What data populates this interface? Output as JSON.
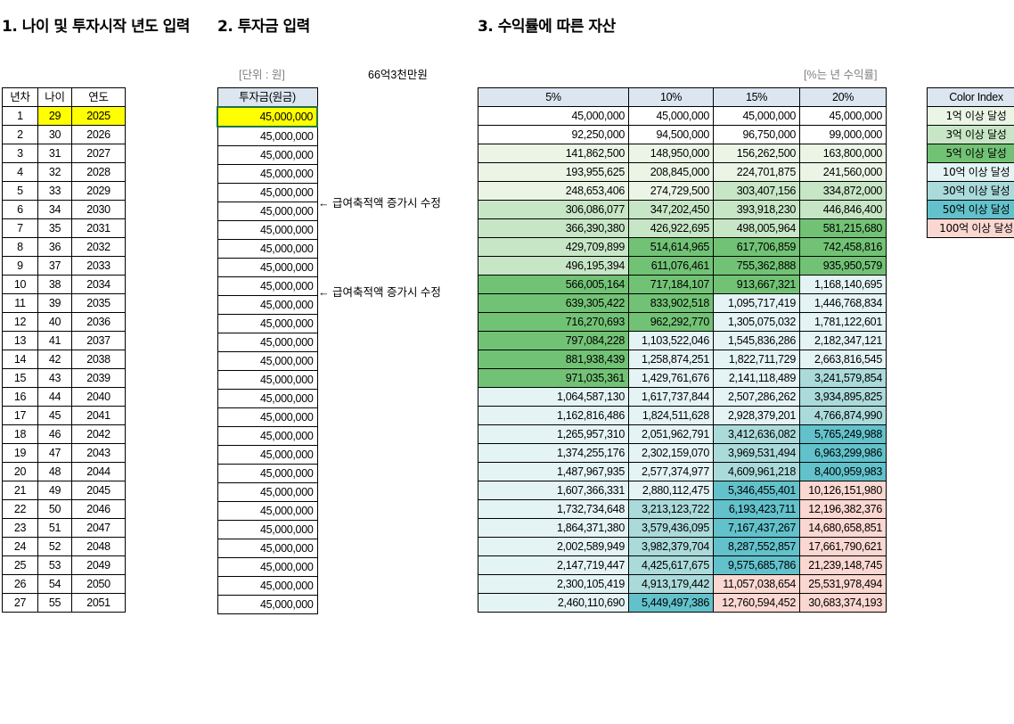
{
  "section_titles": {
    "s1": "1. 나이 및 투자시작 년도 입력",
    "s2": "2. 투자금 입력",
    "s3": "3. 수익률에 따른 자산"
  },
  "unit_label": "[단위 : 원]",
  "total_note": "66억3천만원",
  "rate_note": "[%는 년 수익률]",
  "left_headers": [
    "년차",
    "나이",
    "연도"
  ],
  "invest_header": "투자금(원금)",
  "arrow_notes": [
    {
      "row": 6,
      "text": "← 급여축적액 증가시 수정"
    },
    {
      "row": 11,
      "text": "← 급여축적액 증가시 수정"
    }
  ],
  "rate_headers": [
    "5%",
    "10%",
    "15%",
    "20%"
  ],
  "colors": {
    "header_fill": "#dce6f1",
    "input_highlight": "#ffff00",
    "tier_1": "#ebf5e6",
    "tier_3": "#c7e6c6",
    "tier_5": "#72c275",
    "tier_10": "#e4f3f4",
    "tier_30": "#abdadb",
    "tier_50": "#62c1cb",
    "tier_100": "#fbd7d1"
  },
  "legend": {
    "title": "Color Index",
    "items": [
      {
        "label": "1억 이상 달성",
        "color": "#ebf5e6"
      },
      {
        "label": "3억 이상 달성",
        "color": "#c7e6c6"
      },
      {
        "label": "5억 이상 달성",
        "color": "#72c275"
      },
      {
        "label": "10억 이상 달성",
        "color": "#e4f3f4"
      },
      {
        "label": "30억 이상 달성",
        "color": "#abdadb"
      },
      {
        "label": "50억 이상 달성",
        "color": "#62c1cb"
      },
      {
        "label": "100억 이상 달성",
        "color": "#fbd7d1"
      }
    ]
  },
  "rows": [
    {
      "year": "1",
      "age": "29",
      "cal": "2025",
      "invest": "45,000,000",
      "v": [
        "45,000,000",
        "45,000,000",
        "45,000,000",
        "45,000,000"
      ]
    },
    {
      "year": "2",
      "age": "30",
      "cal": "2026",
      "invest": "45,000,000",
      "v": [
        "92,250,000",
        "94,500,000",
        "96,750,000",
        "99,000,000"
      ]
    },
    {
      "year": "3",
      "age": "31",
      "cal": "2027",
      "invest": "45,000,000",
      "v": [
        "141,862,500",
        "148,950,000",
        "156,262,500",
        "163,800,000"
      ]
    },
    {
      "year": "4",
      "age": "32",
      "cal": "2028",
      "invest": "45,000,000",
      "v": [
        "193,955,625",
        "208,845,000",
        "224,701,875",
        "241,560,000"
      ]
    },
    {
      "year": "5",
      "age": "33",
      "cal": "2029",
      "invest": "45,000,000",
      "v": [
        "248,653,406",
        "274,729,500",
        "303,407,156",
        "334,872,000"
      ]
    },
    {
      "year": "6",
      "age": "34",
      "cal": "2030",
      "invest": "45,000,000",
      "v": [
        "306,086,077",
        "347,202,450",
        "393,918,230",
        "446,846,400"
      ]
    },
    {
      "year": "7",
      "age": "35",
      "cal": "2031",
      "invest": "45,000,000",
      "v": [
        "366,390,380",
        "426,922,695",
        "498,005,964",
        "581,215,680"
      ]
    },
    {
      "year": "8",
      "age": "36",
      "cal": "2032",
      "invest": "45,000,000",
      "v": [
        "429,709,899",
        "514,614,965",
        "617,706,859",
        "742,458,816"
      ]
    },
    {
      "year": "9",
      "age": "37",
      "cal": "2033",
      "invest": "45,000,000",
      "v": [
        "496,195,394",
        "611,076,461",
        "755,362,888",
        "935,950,579"
      ]
    },
    {
      "year": "10",
      "age": "38",
      "cal": "2034",
      "invest": "45,000,000",
      "v": [
        "566,005,164",
        "717,184,107",
        "913,667,321",
        "1,168,140,695"
      ]
    },
    {
      "year": "11",
      "age": "39",
      "cal": "2035",
      "invest": "45,000,000",
      "v": [
        "639,305,422",
        "833,902,518",
        "1,095,717,419",
        "1,446,768,834"
      ]
    },
    {
      "year": "12",
      "age": "40",
      "cal": "2036",
      "invest": "45,000,000",
      "v": [
        "716,270,693",
        "962,292,770",
        "1,305,075,032",
        "1,781,122,601"
      ]
    },
    {
      "year": "13",
      "age": "41",
      "cal": "2037",
      "invest": "45,000,000",
      "v": [
        "797,084,228",
        "1,103,522,046",
        "1,545,836,286",
        "2,182,347,121"
      ]
    },
    {
      "year": "14",
      "age": "42",
      "cal": "2038",
      "invest": "45,000,000",
      "v": [
        "881,938,439",
        "1,258,874,251",
        "1,822,711,729",
        "2,663,816,545"
      ]
    },
    {
      "year": "15",
      "age": "43",
      "cal": "2039",
      "invest": "45,000,000",
      "v": [
        "971,035,361",
        "1,429,761,676",
        "2,141,118,489",
        "3,241,579,854"
      ]
    },
    {
      "year": "16",
      "age": "44",
      "cal": "2040",
      "invest": "45,000,000",
      "v": [
        "1,064,587,130",
        "1,617,737,844",
        "2,507,286,262",
        "3,934,895,825"
      ]
    },
    {
      "year": "17",
      "age": "45",
      "cal": "2041",
      "invest": "45,000,000",
      "v": [
        "1,162,816,486",
        "1,824,511,628",
        "2,928,379,201",
        "4,766,874,990"
      ]
    },
    {
      "year": "18",
      "age": "46",
      "cal": "2042",
      "invest": "45,000,000",
      "v": [
        "1,265,957,310",
        "2,051,962,791",
        "3,412,636,082",
        "5,765,249,988"
      ]
    },
    {
      "year": "19",
      "age": "47",
      "cal": "2043",
      "invest": "45,000,000",
      "v": [
        "1,374,255,176",
        "2,302,159,070",
        "3,969,531,494",
        "6,963,299,986"
      ]
    },
    {
      "year": "20",
      "age": "48",
      "cal": "2044",
      "invest": "45,000,000",
      "v": [
        "1,487,967,935",
        "2,577,374,977",
        "4,609,961,218",
        "8,400,959,983"
      ]
    },
    {
      "year": "21",
      "age": "49",
      "cal": "2045",
      "invest": "45,000,000",
      "v": [
        "1,607,366,331",
        "2,880,112,475",
        "5,346,455,401",
        "10,126,151,980"
      ]
    },
    {
      "year": "22",
      "age": "50",
      "cal": "2046",
      "invest": "45,000,000",
      "v": [
        "1,732,734,648",
        "3,213,123,722",
        "6,193,423,711",
        "12,196,382,376"
      ]
    },
    {
      "year": "23",
      "age": "51",
      "cal": "2047",
      "invest": "45,000,000",
      "v": [
        "1,864,371,380",
        "3,579,436,095",
        "7,167,437,267",
        "14,680,658,851"
      ]
    },
    {
      "year": "24",
      "age": "52",
      "cal": "2048",
      "invest": "45,000,000",
      "v": [
        "2,002,589,949",
        "3,982,379,704",
        "8,287,552,857",
        "17,661,790,621"
      ]
    },
    {
      "year": "25",
      "age": "53",
      "cal": "2049",
      "invest": "45,000,000",
      "v": [
        "2,147,719,447",
        "4,425,617,675",
        "9,575,685,786",
        "21,239,148,745"
      ]
    },
    {
      "year": "26",
      "age": "54",
      "cal": "2050",
      "invest": "45,000,000",
      "v": [
        "2,300,105,419",
        "4,913,179,442",
        "11,057,038,654",
        "25,531,978,494"
      ]
    },
    {
      "year": "27",
      "age": "55",
      "cal": "2051",
      "invest": "45,000,000",
      "v": [
        "2,460,110,690",
        "5,449,497,386",
        "12,760,594,452",
        "30,683,374,193"
      ]
    }
  ]
}
